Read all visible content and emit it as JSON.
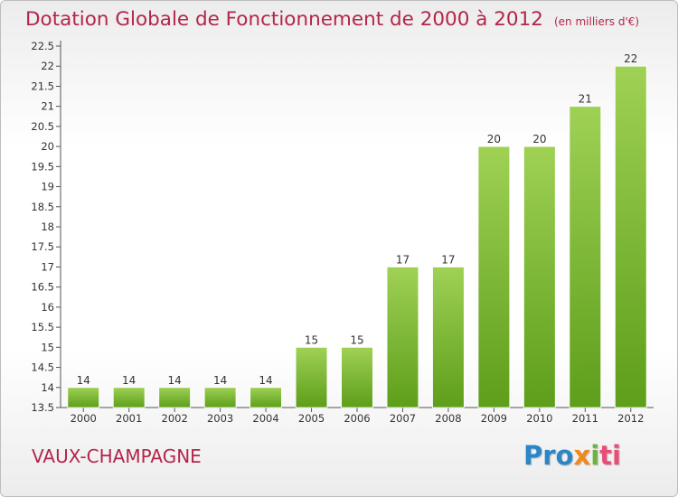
{
  "header": {
    "title": "Dotation Globale de Fonctionnement de 2000 à 2012",
    "unit": "(en milliers d'€)"
  },
  "footer": {
    "commune": "VAUX-CHAMPAGNE",
    "logo": [
      "Pro",
      "x",
      "i",
      "ti"
    ]
  },
  "colors": {
    "title": "#b4254a",
    "bar_top": "#9fd155",
    "bar_bottom": "#5d9e1a",
    "axis": "#555555"
  },
  "chart_data": {
    "type": "bar",
    "title": "Dotation Globale de Fonctionnement de 2000 à 2012",
    "subtitle": "(en milliers d'€)",
    "categories": [
      "2000",
      "2001",
      "2002",
      "2003",
      "2004",
      "2005",
      "2006",
      "2007",
      "2008",
      "2009",
      "2010",
      "2011",
      "2012"
    ],
    "values": [
      14,
      14,
      14,
      14,
      14,
      15,
      15,
      17,
      17,
      20,
      20,
      21,
      22
    ],
    "data_labels": [
      "14",
      "14",
      "14",
      "14",
      "14",
      "15",
      "15",
      "17",
      "17",
      "20",
      "20",
      "21",
      "22"
    ],
    "ylim": [
      13.5,
      22.5
    ],
    "yticks": [
      "13.5",
      "14",
      "14.5",
      "15",
      "15.5",
      "16",
      "16.5",
      "17",
      "17.5",
      "18",
      "18.5",
      "19",
      "19.5",
      "20",
      "20.5",
      "21",
      "21.5",
      "22",
      "22.5"
    ],
    "xlabel": "",
    "ylabel": "",
    "grid": false,
    "legend": "none"
  }
}
